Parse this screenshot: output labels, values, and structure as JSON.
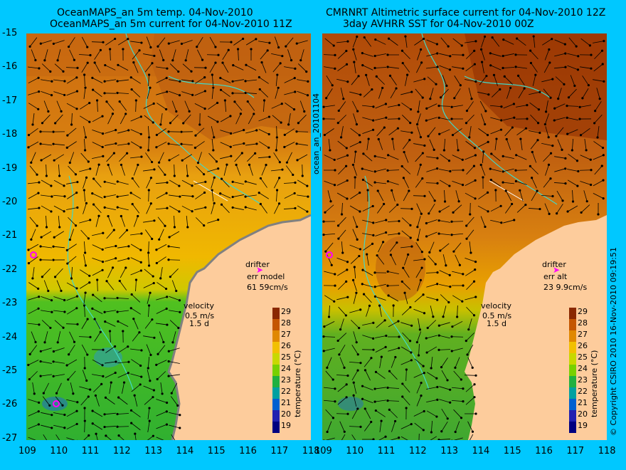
{
  "left": {
    "title_line1": "OceanMAPS_an 5m temp. 04-Nov-2010",
    "title_line2": "OceanMAPS_an 5m current for 04-Nov-2010 11Z",
    "drifter_label": "drifter",
    "drifter_err_label": "err model",
    "drifter_err_value": "61 59cm/s",
    "velocity_label": "velocity",
    "velocity_scale": "0.5 m/s",
    "velocity_days": "1.5 d",
    "colorbar_label": "temperature (°C)"
  },
  "right": {
    "title_line1": "CMRNRT Altimetric surface current for 04-Nov-2010 12Z",
    "title_line2": "3day AVHRR SST for 04-Nov-2010 00Z",
    "drifter_label": "drifter",
    "drifter_err_label": "err alt",
    "drifter_err_value": "23 9.9cm/s",
    "velocity_label": "velocity",
    "velocity_scale": "0.5 m/s",
    "velocity_days": "1.5 d",
    "colorbar_label": "temperature (°C)"
  },
  "center_label": "ocean_an_20101104",
  "copyright": "© Copyright CSIRO 2010   16-Nov-2010 09:19:51",
  "y_ticks": [
    "-15",
    "-16",
    "-17",
    "-18",
    "-19",
    "-20",
    "-21",
    "-22",
    "-23",
    "-24",
    "-25",
    "-26",
    "-27"
  ],
  "x_ticks": [
    "109",
    "110",
    "111",
    "112",
    "113",
    "114",
    "115",
    "116",
    "117",
    "118"
  ],
  "colorbar_ticks": [
    "29",
    "28",
    "27",
    "26",
    "25",
    "24",
    "23",
    "22",
    "21",
    "20",
    "19"
  ],
  "colors": {
    "background": "#00c8ff",
    "land": "#fdcc9c",
    "coast": "#40d8c8",
    "drifter": "#ff00ff"
  },
  "colorbar_colors": [
    "#8a2800",
    "#c45600",
    "#e08800",
    "#f2c000",
    "#c8d800",
    "#78d000",
    "#20b040",
    "#00a0a0",
    "#0060d0",
    "#2020b0",
    "#000080"
  ]
}
